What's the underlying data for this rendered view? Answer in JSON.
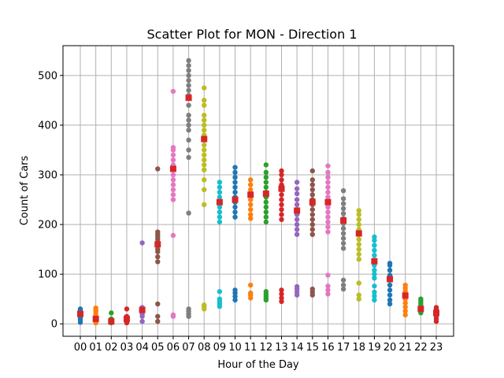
{
  "chart_data": {
    "type": "scatter",
    "title": "Scatter Plot for MON - Direction 1",
    "xlabel": "Hour of the Day",
    "ylabel": "Count of Cars",
    "categories": [
      "00",
      "01",
      "02",
      "03",
      "04",
      "05",
      "06",
      "07",
      "08",
      "09",
      "10",
      "11",
      "12",
      "13",
      "14",
      "15",
      "16",
      "17",
      "18",
      "19",
      "20",
      "21",
      "22",
      "23"
    ],
    "ylim": [
      -25,
      560
    ],
    "yticks": [
      0,
      100,
      200,
      300,
      400,
      500
    ],
    "grid": true,
    "palette": [
      "#1f77b4",
      "#ff7f0e",
      "#2ca02c",
      "#d62728",
      "#9467bd",
      "#8c564b",
      "#e377c2",
      "#7f7f7f",
      "#bcbd22",
      "#17becf"
    ],
    "mean_marker_color": "#d62728",
    "hours": [
      {
        "hour": "00",
        "points": [
          3,
          8,
          12,
          15,
          18,
          20,
          22,
          25,
          28,
          30
        ],
        "mean": 20
      },
      {
        "hour": "01",
        "points": [
          2,
          5,
          8,
          12,
          15,
          20,
          25,
          28,
          32
        ],
        "mean": 10
      },
      {
        "hour": "02",
        "points": [
          2,
          4,
          6,
          8,
          10,
          22
        ],
        "mean": 5
      },
      {
        "hour": "03",
        "points": [
          2,
          5,
          8,
          10,
          12,
          15,
          30
        ],
        "mean": 10
      },
      {
        "hour": "04",
        "points": [
          5,
          15,
          20,
          25,
          30,
          33,
          163
        ],
        "mean": 28
      },
      {
        "hour": "05",
        "points": [
          5,
          15,
          40,
          125,
          135,
          145,
          150,
          160,
          165,
          170,
          175,
          180,
          185,
          312
        ],
        "mean": 160
      },
      {
        "hour": "06",
        "points": [
          15,
          18,
          178,
          250,
          260,
          270,
          280,
          290,
          300,
          310,
          320,
          330,
          340,
          350,
          355,
          468
        ],
        "mean": 312
      },
      {
        "hour": "07",
        "points": [
          15,
          20,
          25,
          30,
          223,
          335,
          350,
          370,
          390,
          400,
          410,
          420,
          440,
          460,
          470,
          480,
          490,
          500,
          510,
          520,
          530
        ],
        "mean": 455
      },
      {
        "hour": "08",
        "points": [
          30,
          35,
          38,
          240,
          270,
          290,
          310,
          320,
          330,
          340,
          350,
          360,
          370,
          380,
          390,
          400,
          410,
          420,
          440,
          450,
          475
        ],
        "mean": 372
      },
      {
        "hour": "09",
        "points": [
          35,
          40,
          45,
          50,
          65,
          205,
          215,
          225,
          235,
          245,
          255,
          265,
          275,
          285
        ],
        "mean": 245
      },
      {
        "hour": "10",
        "points": [
          48,
          55,
          62,
          68,
          215,
          225,
          235,
          245,
          255,
          265,
          275,
          285,
          295,
          305,
          315
        ],
        "mean": 250
      },
      {
        "hour": "11",
        "points": [
          52,
          58,
          62,
          78,
          212,
          220,
          230,
          240,
          250,
          260,
          270,
          280,
          290
        ],
        "mean": 260
      },
      {
        "hour": "12",
        "points": [
          48,
          52,
          56,
          60,
          65,
          205,
          215,
          225,
          235,
          245,
          255,
          265,
          275,
          285,
          295,
          305,
          320
        ],
        "mean": 262
      },
      {
        "hour": "13",
        "points": [
          45,
          52,
          60,
          68,
          210,
          220,
          230,
          240,
          250,
          260,
          270,
          280,
          290,
          300,
          308
        ],
        "mean": 272
      },
      {
        "hour": "14",
        "points": [
          58,
          64,
          70,
          75,
          180,
          190,
          200,
          210,
          220,
          230,
          240,
          250,
          262,
          272,
          285
        ],
        "mean": 228
      },
      {
        "hour": "15",
        "points": [
          58,
          64,
          70,
          180,
          190,
          200,
          210,
          220,
          230,
          240,
          250,
          260,
          270,
          280,
          290,
          308
        ],
        "mean": 245
      },
      {
        "hour": "16",
        "points": [
          60,
          68,
          76,
          98,
          185,
          195,
          205,
          215,
          225,
          235,
          245,
          255,
          265,
          275,
          285,
          295,
          305,
          318
        ],
        "mean": 245
      },
      {
        "hour": "17",
        "points": [
          70,
          78,
          88,
          152,
          162,
          172,
          182,
          192,
          202,
          212,
          222,
          232,
          242,
          252,
          268
        ],
        "mean": 208
      },
      {
        "hour": "18",
        "points": [
          50,
          58,
          82,
          130,
          140,
          150,
          160,
          170,
          180,
          190,
          200,
          210,
          220,
          228
        ],
        "mean": 182
      },
      {
        "hour": "19",
        "points": [
          48,
          56,
          64,
          76,
          92,
          100,
          108,
          118,
          128,
          138,
          148,
          158,
          168,
          175
        ],
        "mean": 126
      },
      {
        "hour": "20",
        "points": [
          40,
          48,
          58,
          68,
          78,
          88,
          98,
          108,
          118,
          122
        ],
        "mean": 90
      },
      {
        "hour": "21",
        "points": [
          18,
          26,
          34,
          42,
          50,
          58,
          66,
          72,
          78
        ],
        "mean": 57
      },
      {
        "hour": "22",
        "points": [
          22,
          26,
          30,
          34,
          38,
          42,
          46,
          50
        ],
        "mean": 30
      },
      {
        "hour": "23",
        "points": [
          5,
          10,
          15,
          20,
          25,
          30,
          33
        ],
        "mean": 22
      }
    ]
  }
}
